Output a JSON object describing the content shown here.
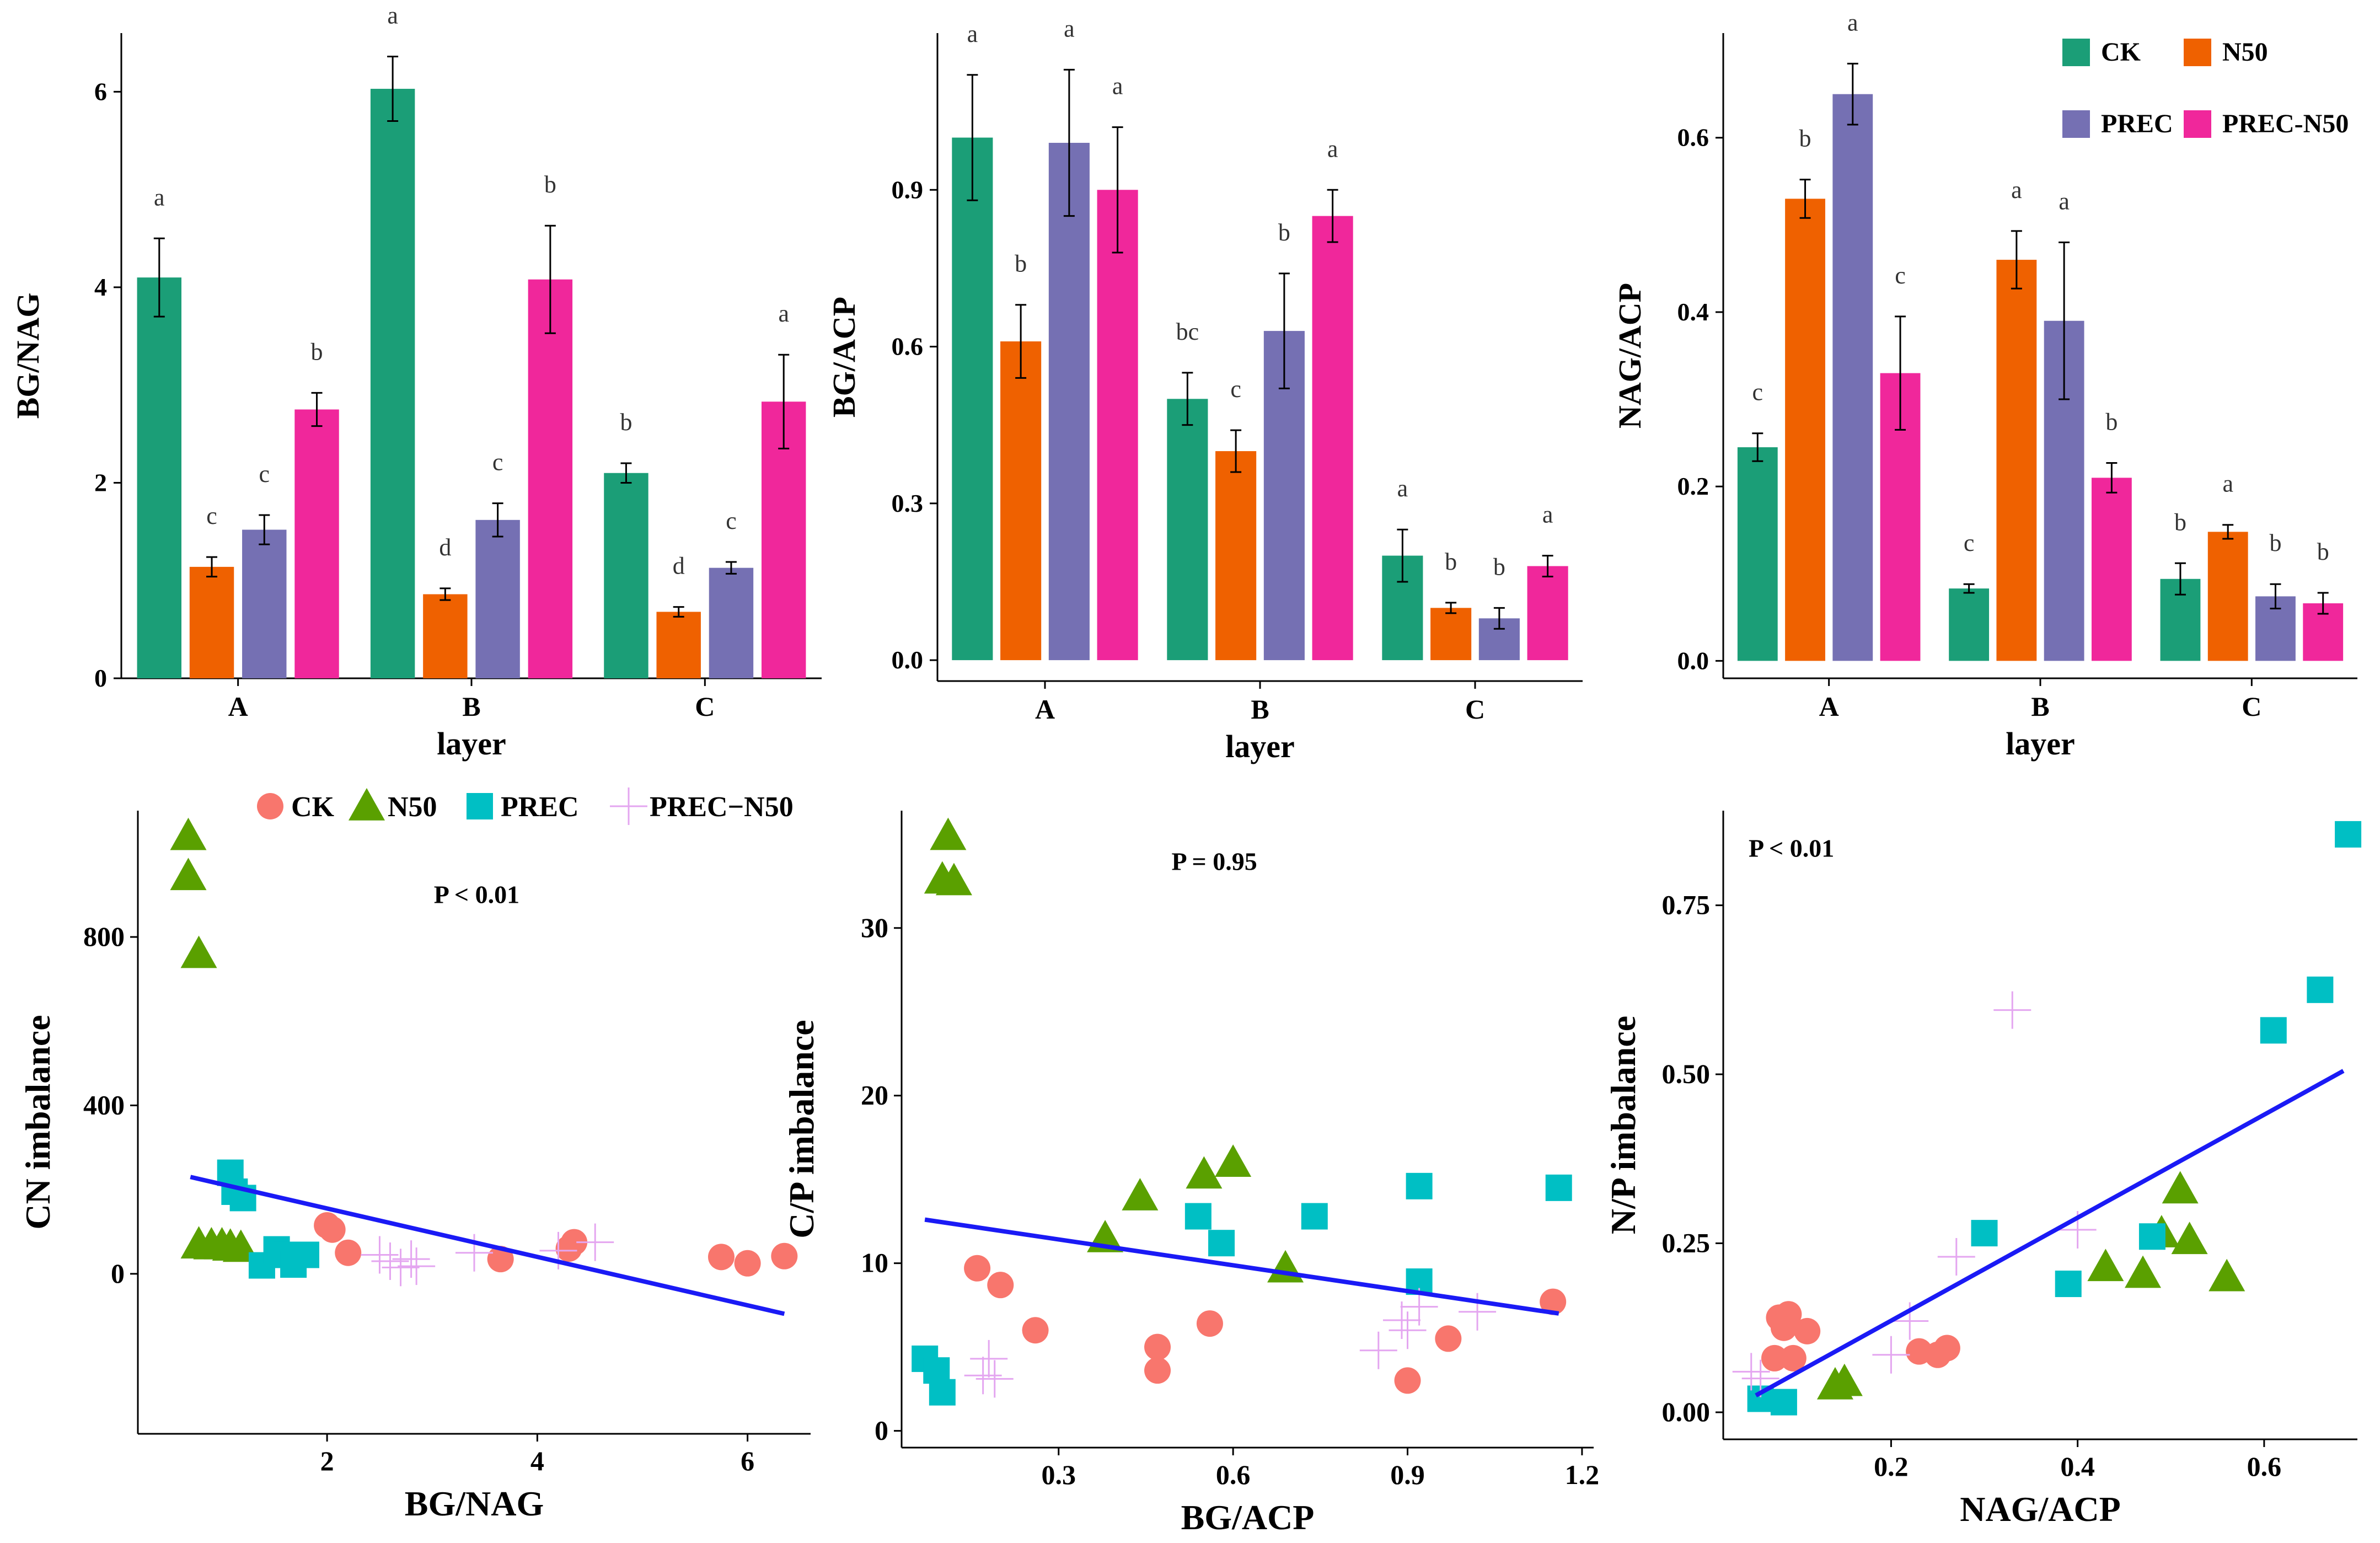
{
  "colors": {
    "CK": "#1b9e77",
    "N50": "#ef6100",
    "PREC": "#7570b3",
    "PREC-N50": "#f0279b",
    "scatter_CK": "#f8766d",
    "scatter_N50": "#5aa000",
    "scatter_PREC": "#00bfc4",
    "scatter_PRECN50": "#e4a6f0",
    "regression": "#1a1af5"
  },
  "bar_legend": {
    "items": [
      {
        "key": "CK",
        "label": "CK"
      },
      {
        "key": "N50",
        "label": "N50"
      },
      {
        "key": "PREC",
        "label": "PREC"
      },
      {
        "key": "PREC-N50",
        "label": "PREC-N50"
      }
    ]
  },
  "scatter_legend": {
    "items": [
      {
        "key": "CK",
        "label": "CK",
        "shape": "circle"
      },
      {
        "key": "N50",
        "label": "N50",
        "shape": "triangle"
      },
      {
        "key": "PREC",
        "label": "PREC",
        "shape": "square"
      },
      {
        "key": "PREC-N50",
        "label": "PREC−N50",
        "shape": "plus"
      }
    ]
  },
  "chart_data": [
    {
      "type": "bar",
      "ylabel": "BG/NAG",
      "xlabel": "layer",
      "categories": [
        "A",
        "B",
        "C"
      ],
      "ylim": [
        0,
        6.6
      ],
      "yticks": [
        0,
        2,
        4,
        6
      ],
      "ytick_labels": [
        "0",
        "2",
        "4",
        "6"
      ],
      "series": [
        {
          "name": "CK",
          "values": [
            4.1,
            6.03,
            2.1
          ],
          "errors": [
            0.4,
            0.33,
            0.1
          ],
          "letters": [
            "a",
            "a",
            "b"
          ]
        },
        {
          "name": "N50",
          "values": [
            1.14,
            0.86,
            0.68
          ],
          "errors": [
            0.1,
            0.06,
            0.05
          ],
          "letters": [
            "c",
            "d",
            "d"
          ]
        },
        {
          "name": "PREC",
          "values": [
            1.52,
            1.62,
            1.13
          ],
          "errors": [
            0.15,
            0.17,
            0.06
          ],
          "letters": [
            "c",
            "c",
            "c"
          ]
        },
        {
          "name": "PREC-N50",
          "values": [
            2.75,
            4.08,
            2.83
          ],
          "errors": [
            0.17,
            0.55,
            0.48
          ],
          "letters": [
            "b",
            "b",
            "a"
          ]
        }
      ]
    },
    {
      "type": "bar",
      "ylabel": "BG/ACP",
      "xlabel": "layer",
      "categories": [
        "A",
        "B",
        "C"
      ],
      "ylim": [
        -0.04,
        1.2
      ],
      "yticks": [
        0,
        0.3,
        0.6,
        0.9
      ],
      "ytick_labels": [
        "0.0",
        "0.3",
        "0.6",
        "0.9"
      ],
      "series": [
        {
          "name": "CK",
          "values": [
            1.0,
            0.5,
            0.2
          ],
          "errors": [
            0.12,
            0.05,
            0.05
          ],
          "letters": [
            "a",
            "bc",
            "a"
          ]
        },
        {
          "name": "N50",
          "values": [
            0.61,
            0.4,
            0.1
          ],
          "errors": [
            0.07,
            0.04,
            0.01
          ],
          "letters": [
            "b",
            "c",
            "b"
          ]
        },
        {
          "name": "PREC",
          "values": [
            0.99,
            0.63,
            0.08
          ],
          "errors": [
            0.14,
            0.11,
            0.02
          ],
          "letters": [
            "a",
            "b",
            "b"
          ]
        },
        {
          "name": "PREC-N50",
          "values": [
            0.9,
            0.85,
            0.18
          ],
          "errors": [
            0.12,
            0.05,
            0.02
          ],
          "letters": [
            "a",
            "a",
            "a"
          ]
        }
      ]
    },
    {
      "type": "bar",
      "ylabel": "NAG/ACP",
      "xlabel": "layer",
      "categories": [
        "A",
        "B",
        "C"
      ],
      "ylim": [
        -0.02,
        0.72
      ],
      "yticks": [
        0,
        0.2,
        0.4,
        0.6
      ],
      "ytick_labels": [
        "0.0",
        "0.2",
        "0.4",
        "0.6"
      ],
      "series": [
        {
          "name": "CK",
          "values": [
            0.245,
            0.083,
            0.094
          ],
          "errors": [
            0.016,
            0.005,
            0.018
          ],
          "letters": [
            "c",
            "c",
            "b"
          ]
        },
        {
          "name": "N50",
          "values": [
            0.53,
            0.46,
            0.148
          ],
          "errors": [
            0.022,
            0.033,
            0.008
          ],
          "letters": [
            "b",
            "a",
            "a"
          ]
        },
        {
          "name": "PREC",
          "values": [
            0.65,
            0.39,
            0.074
          ],
          "errors": [
            0.035,
            0.09,
            0.014
          ],
          "letters": [
            "a",
            "a",
            "b"
          ]
        },
        {
          "name": "PREC-N50",
          "values": [
            0.33,
            0.21,
            0.066
          ],
          "errors": [
            0.065,
            0.017,
            0.012
          ],
          "letters": [
            "c",
            "b",
            "b"
          ]
        }
      ]
    },
    {
      "type": "scatter",
      "xlabel": "BG/NAG",
      "ylabel": "CN imbalance",
      "xlim": [
        0.2,
        6.6
      ],
      "ylim": [
        -380,
        1100
      ],
      "xticks": [
        2,
        4,
        6
      ],
      "xtick_labels": [
        "2",
        "4",
        "6"
      ],
      "yticks": [
        0,
        400,
        800
      ],
      "ytick_labels": [
        "0",
        "400",
        "800"
      ],
      "annotation": "P < 0.01",
      "regression": {
        "x": [
          0.7,
          6.35
        ],
        "y": [
          230,
          -95
        ]
      },
      "series": [
        {
          "name": "CK",
          "points": [
            [
              2.0,
              115
            ],
            [
              2.05,
              105
            ],
            [
              2.2,
              50
            ],
            [
              3.65,
              35
            ],
            [
              4.3,
              60
            ],
            [
              4.35,
              75
            ],
            [
              5.75,
              40
            ],
            [
              6.0,
              25
            ],
            [
              6.35,
              42
            ]
          ]
        },
        {
          "name": "N50",
          "points": [
            [
              0.68,
              1040
            ],
            [
              0.68,
              945
            ],
            [
              0.78,
              760
            ],
            [
              0.78,
              70
            ],
            [
              0.9,
              68
            ],
            [
              1.0,
              68
            ],
            [
              1.08,
              65
            ],
            [
              1.18,
              62
            ]
          ]
        },
        {
          "name": "PREC",
          "points": [
            [
              1.08,
              240
            ],
            [
              1.12,
              195
            ],
            [
              1.2,
              180
            ],
            [
              1.38,
              20
            ],
            [
              1.52,
              58
            ],
            [
              1.62,
              45
            ],
            [
              1.68,
              22
            ],
            [
              1.8,
              45
            ]
          ]
        },
        {
          "name": "PREC-N50",
          "points": [
            [
              2.5,
              45
            ],
            [
              2.6,
              30
            ],
            [
              2.7,
              15
            ],
            [
              2.8,
              35
            ],
            [
              2.85,
              18
            ],
            [
              3.4,
              50
            ],
            [
              4.2,
              55
            ],
            [
              4.55,
              75
            ]
          ]
        }
      ]
    },
    {
      "type": "scatter",
      "xlabel": "BG/ACP",
      "ylabel": "C/P imbalance",
      "xlim": [
        0.03,
        1.22
      ],
      "ylim": [
        -1,
        37
      ],
      "xticks": [
        0.3,
        0.6,
        0.9,
        1.2
      ],
      "xtick_labels": [
        "0.3",
        "0.6",
        "0.9",
        "1.2"
      ],
      "yticks": [
        0,
        10,
        20,
        30
      ],
      "ytick_labels": [
        "0",
        "10",
        "20",
        "30"
      ],
      "annotation": "P = 0.95",
      "regression": {
        "x": [
          0.07,
          1.16
        ],
        "y": [
          12.6,
          7.0
        ]
      },
      "series": [
        {
          "name": "CK",
          "points": [
            [
              0.16,
              9.7
            ],
            [
              0.2,
              8.7
            ],
            [
              0.26,
              6.0
            ],
            [
              0.47,
              5.0
            ],
            [
              0.47,
              3.6
            ],
            [
              0.56,
              6.4
            ],
            [
              0.9,
              3.0
            ],
            [
              0.97,
              5.5
            ],
            [
              1.15,
              7.7
            ]
          ]
        },
        {
          "name": "N50",
          "points": [
            [
              0.11,
              35.5
            ],
            [
              0.1,
              32.9
            ],
            [
              0.12,
              32.8
            ],
            [
              0.38,
              11.5
            ],
            [
              0.44,
              14.0
            ],
            [
              0.55,
              15.3
            ],
            [
              0.6,
              16.0
            ],
            [
              0.69,
              9.7
            ]
          ]
        },
        {
          "name": "PREC",
          "points": [
            [
              0.07,
              4.3
            ],
            [
              0.09,
              3.6
            ],
            [
              0.1,
              2.3
            ],
            [
              0.54,
              12.8
            ],
            [
              0.58,
              11.2
            ],
            [
              0.74,
              12.8
            ],
            [
              0.92,
              14.6
            ],
            [
              0.92,
              8.9
            ],
            [
              1.16,
              14.5
            ]
          ]
        },
        {
          "name": "PREC-N50",
          "points": [
            [
              0.18,
              4.3
            ],
            [
              0.19,
              3.1
            ],
            [
              0.17,
              3.3
            ],
            [
              0.85,
              4.8
            ],
            [
              0.89,
              6.6
            ],
            [
              0.9,
              6.0
            ],
            [
              0.92,
              7.4
            ],
            [
              1.02,
              7.1
            ]
          ]
        }
      ]
    },
    {
      "type": "scatter",
      "xlabel": "NAG/ACP",
      "ylabel": "N/P imbalance",
      "xlim": [
        0.02,
        0.7
      ],
      "ylim": [
        -0.04,
        0.89
      ],
      "xticks": [
        0.2,
        0.4,
        0.6
      ],
      "xtick_labels": [
        "0.2",
        "0.4",
        "0.6"
      ],
      "yticks": [
        0,
        0.25,
        0.5,
        0.75
      ],
      "ytick_labels": [
        "0.00",
        "0.25",
        "0.50",
        "0.75"
      ],
      "annotation": "P < 0.01",
      "regression": {
        "x": [
          0.055,
          0.685
        ],
        "y": [
          0.025,
          0.505
        ]
      },
      "series": [
        {
          "name": "CK",
          "points": [
            [
              0.075,
              0.08
            ],
            [
              0.08,
              0.14
            ],
            [
              0.085,
              0.125
            ],
            [
              0.09,
              0.145
            ],
            [
              0.095,
              0.08
            ],
            [
              0.11,
              0.12
            ],
            [
              0.23,
              0.09
            ],
            [
              0.25,
              0.085
            ],
            [
              0.26,
              0.095
            ]
          ]
        },
        {
          "name": "N50",
          "points": [
            [
              0.14,
              0.04
            ],
            [
              0.15,
              0.045
            ],
            [
              0.43,
              0.215
            ],
            [
              0.47,
              0.205
            ],
            [
              0.49,
              0.265
            ],
            [
              0.51,
              0.33
            ],
            [
              0.52,
              0.255
            ],
            [
              0.56,
              0.2
            ]
          ]
        },
        {
          "name": "PREC",
          "points": [
            [
              0.06,
              0.02
            ],
            [
              0.085,
              0.015
            ],
            [
              0.3,
              0.265
            ],
            [
              0.39,
              0.19
            ],
            [
              0.48,
              0.26
            ],
            [
              0.61,
              0.565
            ],
            [
              0.66,
              0.625
            ],
            [
              0.69,
              0.855
            ]
          ]
        },
        {
          "name": "PREC-N50",
          "points": [
            [
              0.05,
              0.06
            ],
            [
              0.2,
              0.085
            ],
            [
              0.22,
              0.135
            ],
            [
              0.27,
              0.23
            ],
            [
              0.33,
              0.595
            ],
            [
              0.4,
              0.27
            ],
            [
              0.06,
              0.05
            ]
          ]
        }
      ]
    }
  ]
}
